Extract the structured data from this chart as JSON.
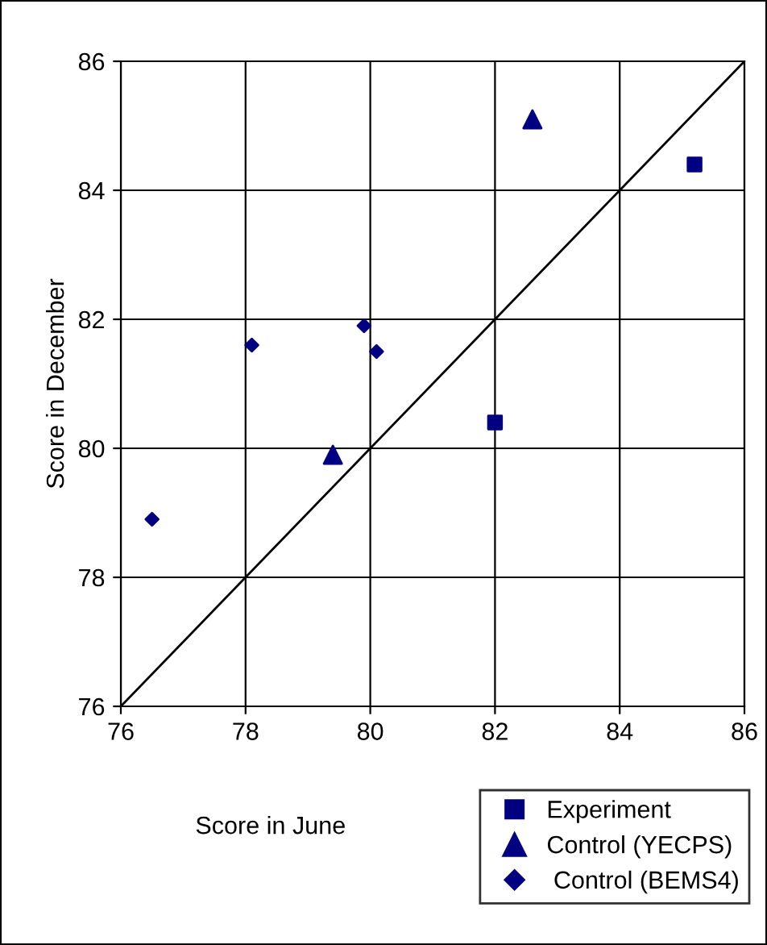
{
  "chart_data": {
    "type": "scatter",
    "xlabel": "Score in June",
    "ylabel": "Score in December",
    "xlim": [
      76,
      86
    ],
    "ylim": [
      76,
      86
    ],
    "xticks": [
      76,
      78,
      80,
      82,
      84,
      86
    ],
    "yticks": [
      76,
      78,
      80,
      82,
      84,
      86
    ],
    "grid": true,
    "legend": "bottom right",
    "series": [
      {
        "name": "Experiment",
        "color": "#000080",
        "marker": "square",
        "x": [
          85.2,
          82.0
        ],
        "values": [
          84.4,
          80.4
        ]
      },
      {
        "name": "Control (YECPS)",
        "color": "#000080",
        "marker": "triangle",
        "x": [
          82.6,
          79.4
        ],
        "values": [
          85.1,
          79.9
        ]
      },
      {
        "name": " Control (BEMS4)",
        "color": "#000080",
        "marker": "diamond",
        "x": [
          76.5,
          78.1,
          79.9,
          80.1
        ],
        "values": [
          78.9,
          81.6,
          81.9,
          81.5
        ]
      },
      {
        "type": "line",
        "color": "#000000",
        "marker": "none",
        "x": [
          76,
          86
        ],
        "values": [
          76,
          86
        ]
      }
    ]
  }
}
